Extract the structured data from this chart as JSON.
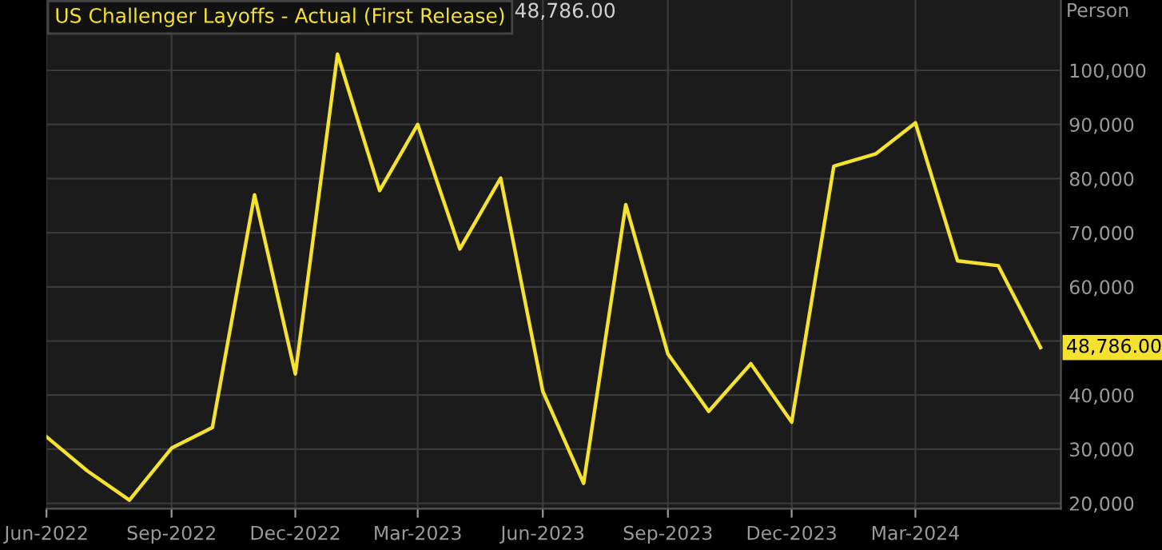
{
  "chart_data": {
    "type": "line",
    "title": "US Challenger Layoffs - Actual (First Release)",
    "ylabel": "Person",
    "x": [
      "2022-06",
      "2022-07",
      "2022-08",
      "2022-09",
      "2022-10",
      "2022-11",
      "2022-12",
      "2023-01",
      "2023-02",
      "2023-03",
      "2023-04",
      "2023-05",
      "2023-06",
      "2023-07",
      "2023-08",
      "2023-09",
      "2023-10",
      "2023-11",
      "2023-12",
      "2024-01",
      "2024-02",
      "2024-03",
      "2024-04",
      "2024-05",
      "2024-06"
    ],
    "series": [
      {
        "color": "#f5e22f",
        "values": [
          32300,
          26000,
          20600,
          30200,
          34000,
          77000,
          43900,
          103000,
          77800,
          90000,
          67000,
          80100,
          40700,
          23700,
          75200,
          47600,
          37000,
          45800,
          35000,
          82300,
          84600,
          90300,
          64800,
          63900,
          48786
        ]
      }
    ],
    "annotations": [
      "48,786.00",
      {
        "text": "48,786.00",
        "x": "2024-06",
        "y": 48786
      }
    ],
    "xlim": [
      "2022-06",
      "2024-06-16"
    ],
    "xticks": [
      {
        "value": "2022-06",
        "label": "Jun-2022"
      },
      {
        "value": "2022-09",
        "label": "Sep-2022"
      },
      {
        "value": "2022-12",
        "label": "Dec-2022"
      },
      {
        "value": "2023-03",
        "label": "Mar-2023"
      },
      {
        "value": "2023-06",
        "label": "Jun-2023"
      },
      {
        "value": "2023-09",
        "label": "Sep-2023"
      },
      {
        "value": "2023-12",
        "label": "Dec-2023"
      },
      {
        "value": "2024-03",
        "label": "Mar-2024"
      }
    ],
    "ylim": [
      19000,
      113000
    ],
    "yticks": [
      {
        "value": 20000,
        "label": "20,000"
      },
      {
        "value": 30000,
        "label": "30,000"
      },
      {
        "value": 40000,
        "label": "40,000"
      },
      {
        "value": 50000,
        "label": null
      },
      {
        "value": 60000,
        "label": "60,000"
      },
      {
        "value": 70000,
        "label": "70,000"
      },
      {
        "value": 80000,
        "label": "80,000"
      },
      {
        "value": 90000,
        "label": "90,000"
      },
      {
        "value": 100000,
        "label": "100,000"
      }
    ],
    "grid": true,
    "legend": false,
    "marker": "none",
    "line_style": "solid"
  }
}
